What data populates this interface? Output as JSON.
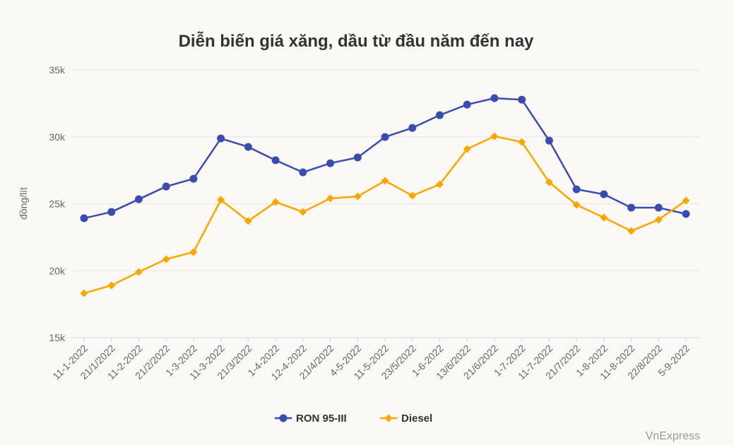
{
  "chart_data": {
    "type": "line",
    "title": "Diễn biến giá xăng, dầu từ đầu năm đến nay",
    "ylabel": "đồng/lít",
    "xlabel": "",
    "ylim": [
      15000,
      35000
    ],
    "yticks": [
      15000,
      20000,
      25000,
      30000,
      35000
    ],
    "ytick_labels": [
      "15k",
      "20k",
      "25k",
      "30k",
      "35k"
    ],
    "grid": true,
    "legend_position": "bottom",
    "categories": [
      "11-1-2022",
      "21/1/2022",
      "11-2-2022",
      "21/2/2022",
      "1-3-2022",
      "11-3-2022",
      "21/3/2022",
      "1-4-2022",
      "12-4-2022",
      "21/4/2022",
      "4-5-2022",
      "11-5-2022",
      "23/5/2022",
      "1-6-2022",
      "13/6/2022",
      "21/6/2022",
      "1-7-2022",
      "11-7-2022",
      "21/7/2022",
      "1-8-2022",
      "11-8-2022",
      "22/8/2022",
      "5-9-2022"
    ],
    "series": [
      {
        "name": "RON 95-III",
        "color": "#3b4cb0",
        "marker": "circle",
        "values": [
          23920,
          24390,
          25340,
          26290,
          26870,
          29880,
          29250,
          28250,
          27350,
          28030,
          28460,
          29990,
          30670,
          31620,
          32410,
          32890,
          32780,
          29720,
          26080,
          25710,
          24710,
          24710,
          24240
        ]
      },
      {
        "name": "Diesel",
        "color": "#ffa500",
        "marker": "diamond",
        "values": [
          18320,
          18900,
          19910,
          20860,
          21390,
          25290,
          23710,
          25130,
          24390,
          25400,
          25550,
          26720,
          25610,
          26450,
          29090,
          30040,
          29620,
          26610,
          24920,
          23970,
          22970,
          23810,
          25240
        ]
      }
    ],
    "credit": "VnExpress"
  }
}
